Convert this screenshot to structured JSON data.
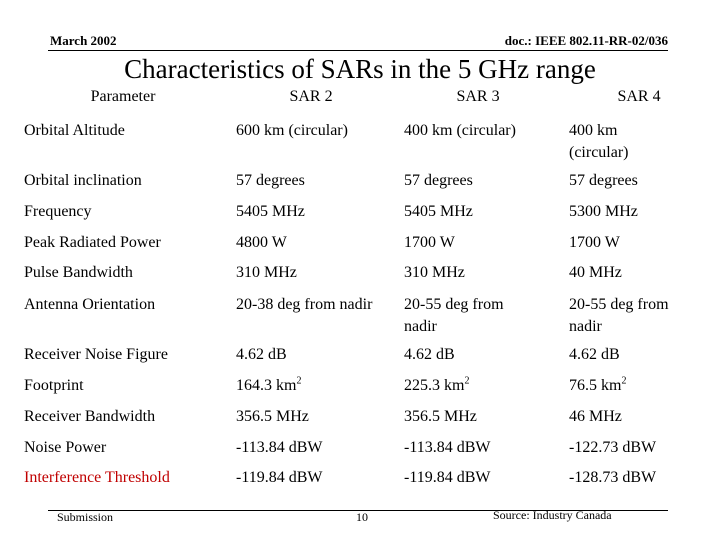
{
  "header": {
    "date": "March 2002",
    "doc": "doc.: IEEE 802.11-RR-02/036"
  },
  "title": "Characteristics of SARs in the 5 GHz range",
  "table": {
    "headers": [
      "Parameter",
      "SAR 2",
      "SAR 3",
      "SAR 4"
    ],
    "rows": [
      {
        "param": "Orbital Altitude",
        "sar2": "600 km (circular)",
        "sar3": "400 km (circular)",
        "sar4": "400 km (circular)"
      },
      {
        "param": "Orbital inclination",
        "sar2": "57 degrees",
        "sar3": "57 degrees",
        "sar4": "57 degrees"
      },
      {
        "param": "Frequency",
        "sar2": "5405 MHz",
        "sar3": "5405 MHz",
        "sar4": "5300 MHz"
      },
      {
        "param": "Peak Radiated Power",
        "sar2": "4800 W",
        "sar3": "1700 W",
        "sar4": "1700 W"
      },
      {
        "param": "Pulse Bandwidth",
        "sar2": "310 MHz",
        "sar3": "310 MHz",
        "sar4": "40 MHz"
      },
      {
        "param": "Antenna Orientation",
        "sar2": "20-38 deg from nadir",
        "sar3": "20-55 deg from nadir",
        "sar4": "20-55 deg from nadir"
      },
      {
        "param": "Receiver Noise Figure",
        "sar2": "4.62 dB",
        "sar3": "4.62 dB",
        "sar4": "4.62 dB"
      },
      {
        "param": "Footprint",
        "sar2": "164.3 km",
        "sar3": "225.3 km",
        "sar4": "76.5 km",
        "sup": "2"
      },
      {
        "param": "Receiver Bandwidth",
        "sar2": "356.5 MHz",
        "sar3": "356.5 MHz",
        "sar4": "46 MHz"
      },
      {
        "param": "Noise Power",
        "sar2": "-113.84 dBW",
        "sar3": "-113.84 dBW",
        "sar4": "-122.73 dBW"
      },
      {
        "param": "Interference Threshold",
        "sar2": "-119.84 dBW",
        "sar3": "-119.84 dBW",
        "sar4": "-128.73 dBW"
      }
    ]
  },
  "footer": {
    "left": "Submission",
    "page": "10",
    "source": "Source: Industry Canada"
  },
  "colors": {
    "highlight_row": "#c00000"
  }
}
